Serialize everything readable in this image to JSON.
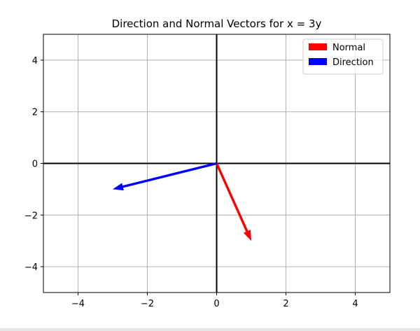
{
  "chart_data": {
    "type": "quiver",
    "title": "Direction and Normal Vectors for x = 3y",
    "xlabel": "",
    "ylabel": "",
    "xlim": [
      -5,
      5
    ],
    "ylim": [
      -5,
      5
    ],
    "xticks": [
      -4,
      -2,
      0,
      2,
      4
    ],
    "yticks": [
      -4,
      -2,
      0,
      2,
      4
    ],
    "xtick_labels": [
      "−4",
      "−2",
      "0",
      "2",
      "4"
    ],
    "ytick_labels": [
      "−4",
      "−2",
      "0",
      "2",
      "4"
    ],
    "grid": true,
    "legend_position": "top-right",
    "series": [
      {
        "name": "Normal",
        "color": "#ff0000",
        "origin": [
          0,
          0
        ],
        "vector": [
          1,
          -3
        ]
      },
      {
        "name": "Direction",
        "color": "#0000ff",
        "origin": [
          0,
          0
        ],
        "vector": [
          -3,
          -1
        ]
      }
    ]
  }
}
